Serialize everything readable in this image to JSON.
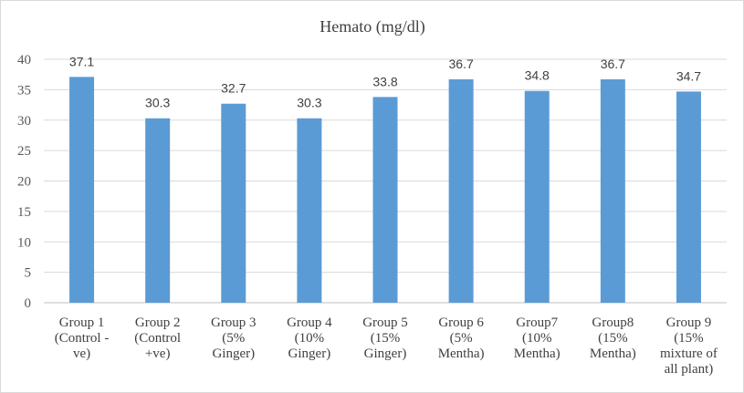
{
  "chart_data": {
    "type": "bar",
    "title": "Hemato (mg/dl)",
    "xlabel": "",
    "ylabel": "",
    "ylim": [
      0,
      40
    ],
    "yticks": [
      0,
      5,
      10,
      15,
      20,
      25,
      30,
      35,
      40
    ],
    "grid": true,
    "legend": "none",
    "bar_color": "#5B9BD5",
    "categories": [
      [
        "Group 1",
        "(Control -",
        "ve)"
      ],
      [
        "Group 2",
        "(Control",
        "+ve)"
      ],
      [
        "Group 3",
        "(5%",
        "Ginger)"
      ],
      [
        "Group 4",
        "(10%",
        "Ginger)"
      ],
      [
        "Group 5",
        "(15%",
        "Ginger)"
      ],
      [
        "Group 6",
        "(5%",
        "Mentha)"
      ],
      [
        "Group7",
        "(10%",
        "Mentha)"
      ],
      [
        "Group8",
        "(15%",
        "Mentha)"
      ],
      [
        "Group 9",
        "(15%",
        "mixture of",
        "all plant)"
      ]
    ],
    "values": [
      37.1,
      30.3,
      32.7,
      30.3,
      33.8,
      36.7,
      34.8,
      36.7,
      34.7
    ],
    "data_labels": [
      "37.1",
      "30.3",
      "32.7",
      "30.3",
      "33.8",
      "36.7",
      "34.8",
      "36.7",
      "34.7"
    ]
  }
}
